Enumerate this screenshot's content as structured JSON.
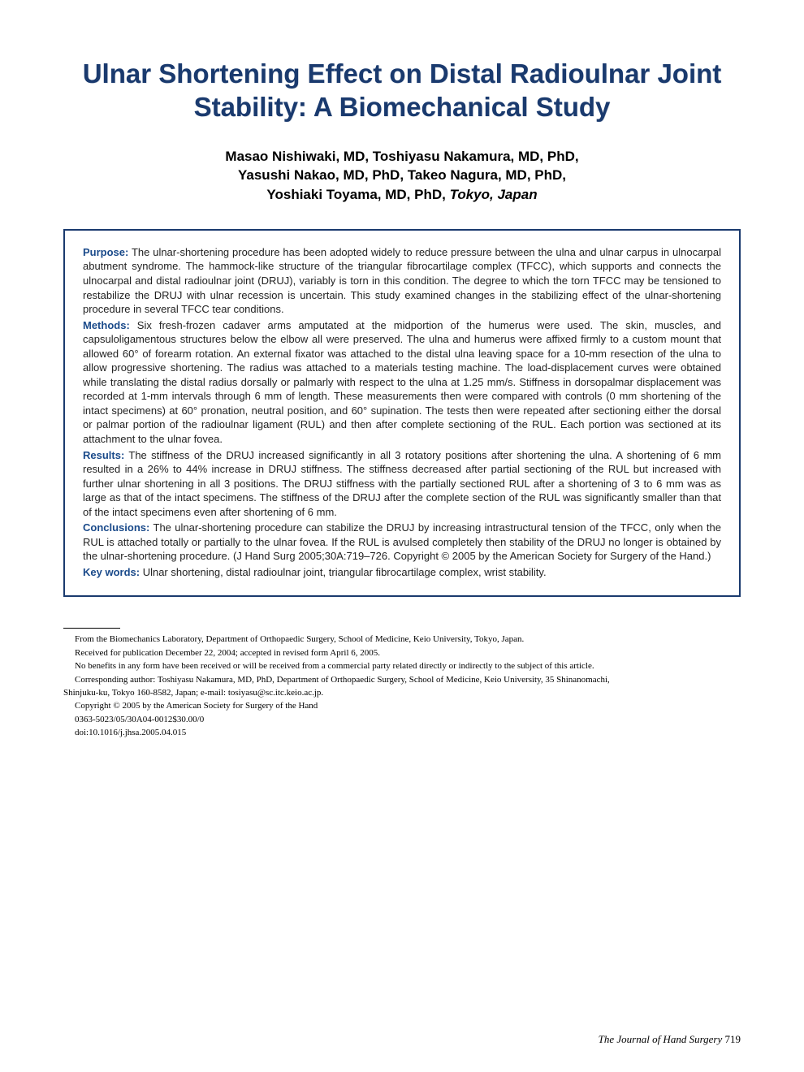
{
  "title": "Ulnar Shortening Effect on Distal Radioulnar Joint Stability: A Biomechanical Study",
  "authors_line1": "Masao Nishiwaki, MD, Toshiyasu Nakamura, MD, PhD,",
  "authors_line2": "Yasushi Nakao, MD, PhD, Takeo Nagura, MD, PhD,",
  "authors_line3_names": "Yoshiaki Toyama, MD, PhD, ",
  "authors_location": "Tokyo, Japan",
  "abstract": {
    "purpose_label": "Purpose:",
    "purpose_text": " The ulnar-shortening procedure has been adopted widely to reduce pressure between the ulna and ulnar carpus in ulnocarpal abutment syndrome. The hammock-like structure of the triangular fibrocartilage complex (TFCC), which supports and connects the ulnocarpal and distal radioulnar joint (DRUJ), variably is torn in this condition. The degree to which the torn TFCC may be tensioned to restabilize the DRUJ with ulnar recession is uncertain. This study examined changes in the stabilizing effect of the ulnar-shortening procedure in several TFCC tear conditions.",
    "methods_label": "Methods:",
    "methods_text": " Six fresh-frozen cadaver arms amputated at the midportion of the humerus were used. The skin, muscles, and capsuloligamentous structures below the elbow all were preserved. The ulna and humerus were affixed firmly to a custom mount that allowed 60° of forearm rotation. An external fixator was attached to the distal ulna leaving space for a 10-mm resection of the ulna to allow progressive shortening. The radius was attached to a materials testing machine. The load-displacement curves were obtained while translating the distal radius dorsally or palmarly with respect to the ulna at 1.25 mm/s. Stiffness in dorsopalmar displacement was recorded at 1-mm intervals through 6 mm of length. These measurements then were compared with controls (0 mm shortening of the intact specimens) at 60° pronation, neutral position, and 60° supination. The tests then were repeated after sectioning either the dorsal or palmar portion of the radioulnar ligament (RUL) and then after complete sectioning of the RUL. Each portion was sectioned at its attachment to the ulnar fovea.",
    "results_label": "Results:",
    "results_text": " The stiffness of the DRUJ increased significantly in all 3 rotatory positions after shortening the ulna. A shortening of 6 mm resulted in a 26% to 44% increase in DRUJ stiffness. The stiffness decreased after partial sectioning of the RUL but increased with further ulnar shortening in all 3 positions. The DRUJ stiffness with the partially sectioned RUL after a shortening of 3 to 6 mm was as large as that of the intact specimens. The stiffness of the DRUJ after the complete section of the RUL was significantly smaller than that of the intact specimens even after shortening of 6 mm.",
    "conclusions_label": "Conclusions:",
    "conclusions_text": " The ulnar-shortening procedure can stabilize the DRUJ by increasing intrastructural tension of the TFCC, only when the RUL is attached totally or partially to the ulnar fovea. If the RUL is avulsed completely then stability of the DRUJ no longer is obtained by the ulnar-shortening procedure. (J Hand Surg 2005;30A:719–726. Copyright © 2005 by the American Society for Surgery of the Hand.)",
    "keywords_label": "Key words:",
    "keywords_text": " Ulnar shortening, distal radioulnar joint, triangular fibrocartilage complex, wrist stability."
  },
  "footer": {
    "from": "From the Biomechanics Laboratory, Department of Orthopaedic Surgery, School of Medicine, Keio University, Tokyo, Japan.",
    "received": "Received for publication December 22, 2004; accepted in revised form April 6, 2005.",
    "benefits": "No benefits in any form have been received or will be received from a commercial party related directly or indirectly to the subject of this article.",
    "corresponding1": "Corresponding author: Toshiyasu Nakamura, MD, PhD, Department of Orthopaedic Surgery, School of Medicine, Keio University, 35 Shinanomachi,",
    "corresponding2": "Shinjuku-ku, Tokyo 160-8582, Japan; e-mail: tosiyasu@sc.itc.keio.ac.jp.",
    "copyright": "Copyright © 2005 by the American Society for Surgery of the Hand",
    "code": "0363-5023/05/30A04-0012$30.00/0",
    "doi": "doi:10.1016/j.jhsa.2005.04.015"
  },
  "page_footer": {
    "journal": "The Journal of Hand Surgery",
    "page": " 719"
  },
  "colors": {
    "title_color": "#1a3a6e",
    "label_color": "#1a4a8a",
    "border_color": "#1a3a6e",
    "background": "#ffffff",
    "text": "#000000"
  },
  "typography": {
    "title_fontsize": 33,
    "authors_fontsize": 17,
    "abstract_fontsize": 13,
    "footer_fontsize": 11,
    "page_footer_fontsize": 13
  }
}
